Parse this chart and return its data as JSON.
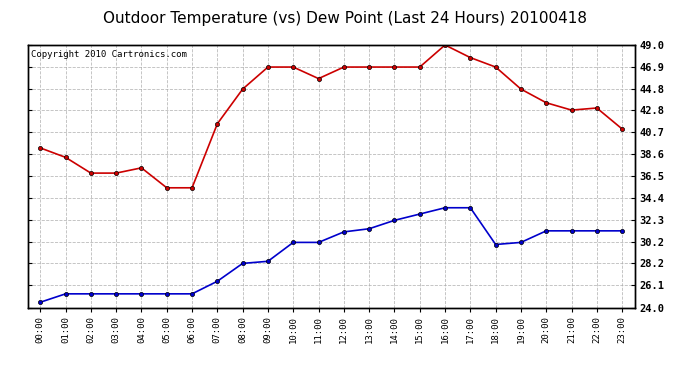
{
  "title": "Outdoor Temperature (vs) Dew Point (Last 24 Hours) 20100418",
  "copyright": "Copyright 2010 Cartronics.com",
  "x_labels": [
    "00:00",
    "01:00",
    "02:00",
    "03:00",
    "04:00",
    "05:00",
    "06:00",
    "07:00",
    "08:00",
    "09:00",
    "10:00",
    "11:00",
    "12:00",
    "13:00",
    "14:00",
    "15:00",
    "16:00",
    "17:00",
    "18:00",
    "19:00",
    "20:00",
    "21:00",
    "22:00",
    "23:00"
  ],
  "temp_data": [
    39.2,
    38.3,
    36.8,
    36.8,
    37.3,
    35.4,
    35.4,
    41.5,
    44.8,
    46.9,
    46.9,
    45.8,
    46.9,
    46.9,
    46.9,
    46.9,
    49.0,
    47.8,
    46.9,
    44.8,
    43.5,
    42.8,
    43.0,
    41.0
  ],
  "dew_data": [
    24.5,
    25.3,
    25.3,
    25.3,
    25.3,
    25.3,
    25.3,
    26.5,
    28.2,
    28.4,
    30.2,
    30.2,
    31.2,
    31.5,
    32.3,
    32.9,
    33.5,
    33.5,
    30.0,
    30.2,
    31.3,
    31.3,
    31.3,
    31.3
  ],
  "ylim": [
    24.0,
    49.0
  ],
  "yticks": [
    24.0,
    26.1,
    28.2,
    30.2,
    32.3,
    34.4,
    36.5,
    38.6,
    40.7,
    42.8,
    44.8,
    46.9,
    49.0
  ],
  "temp_color": "#cc0000",
  "dew_color": "#0000cc",
  "bg_color": "#ffffff",
  "grid_color": "#aaaaaa",
  "title_fontsize": 11,
  "copyright_fontsize": 6.5
}
